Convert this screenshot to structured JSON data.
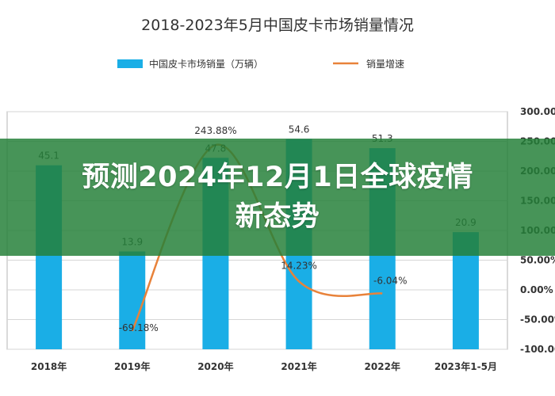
{
  "chart_data": {
    "type": "bar+line",
    "title": "2018-2023年5月中国皮卡市场销量情况",
    "categories": [
      "2018年",
      "2019年",
      "2020年",
      "2021年",
      "2022年",
      "2023年1-5月"
    ],
    "series": [
      {
        "name": "中国皮卡市场销量（万辆）",
        "kind": "bar",
        "axis": "left",
        "color": "#1aaee6",
        "values": [
          45.1,
          13.9,
          47.8,
          54.6,
          51.3,
          20.9
        ],
        "labels": [
          "45.1",
          "13.9",
          "47.8",
          "54.6",
          "51.3",
          "20.9"
        ]
      },
      {
        "name": "销量增速",
        "kind": "line",
        "axis": "right",
        "color": "#e8823a",
        "values": [
          null,
          -69.18,
          243.88,
          14.23,
          -6.04,
          null
        ],
        "labels": [
          "",
          "-69.18%",
          "243.88%",
          "14.23%",
          "-6.04%",
          ""
        ]
      }
    ],
    "left_axis": {
      "ylim": [
        -21.5,
        64.5
      ]
    },
    "right_axis": {
      "ylim": [
        -100,
        300
      ],
      "ticks": [
        "300.00%",
        "250.00%",
        "200.00%",
        "150.00%",
        "100.00%",
        "50.00%",
        "0.00%",
        "-50.00%",
        "-100.00%"
      ],
      "tick_values": [
        300,
        250,
        200,
        150,
        100,
        50,
        0,
        -50,
        -100
      ]
    },
    "grid": true,
    "legend": "top-center"
  },
  "overlay": {
    "line1": "预测2024年12月1日全球疫情",
    "line2": "新态势"
  }
}
